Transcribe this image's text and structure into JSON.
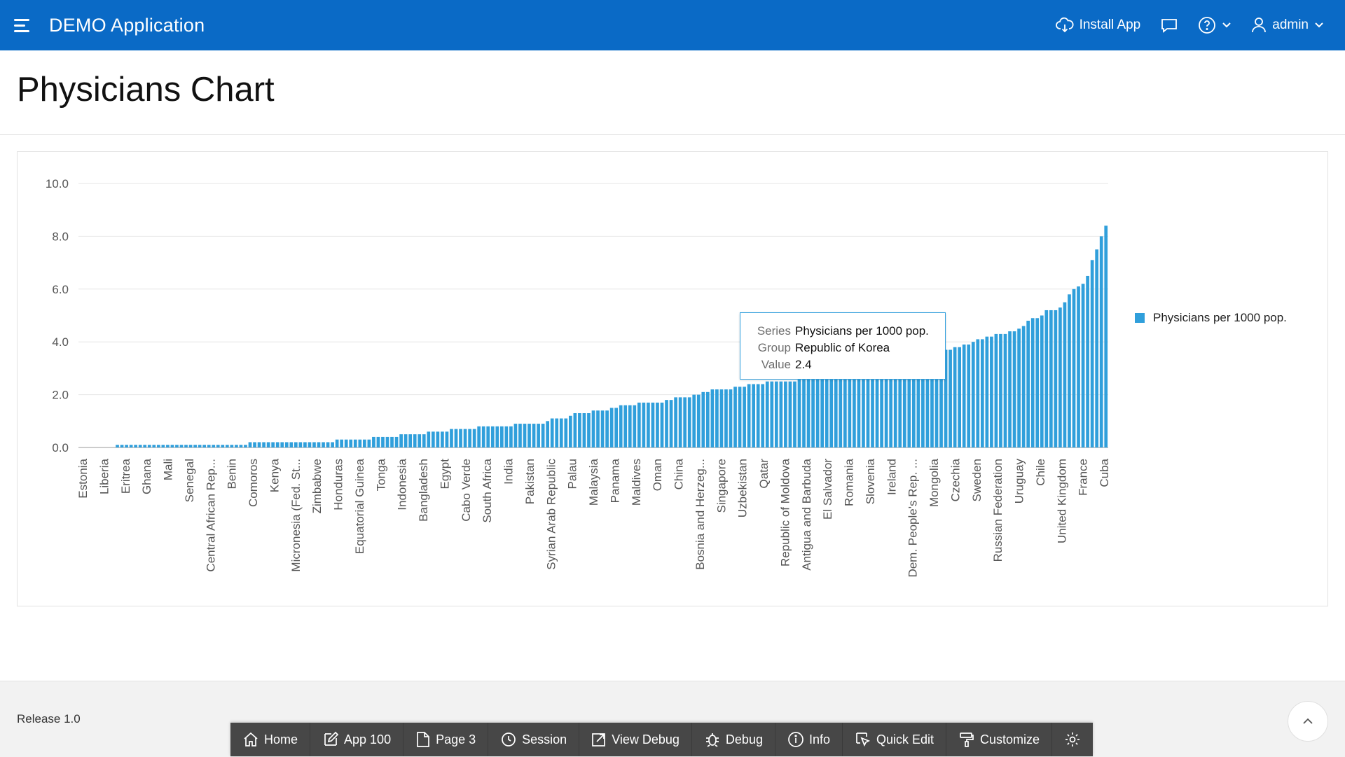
{
  "header": {
    "app_title": "DEMO Application",
    "install_label": "Install App",
    "user_label": "admin"
  },
  "page": {
    "title": "Physicians Chart"
  },
  "tooltip": {
    "series_key": "Series",
    "series_val": "Physicians per 1000 pop.",
    "group_key": "Group",
    "group_val": "Republic of Korea",
    "value_key": "Value",
    "value_val": "2.4"
  },
  "legend": {
    "label": "Physicians per 1000 pop."
  },
  "colors": {
    "bar": "#309fdb",
    "header": "#0a6ac6",
    "devbar": "#474747"
  },
  "chart_data": {
    "type": "bar",
    "ylim": [
      0,
      10
    ],
    "yticks": [
      "0.0",
      "2.0",
      "4.0",
      "6.0",
      "8.0",
      "10.0"
    ],
    "grid": true,
    "legend_position": "right",
    "series": [
      {
        "name": "Physicians per 1000 pop."
      }
    ],
    "labeled_categories": [
      "Estonia",
      "Liberia",
      "Eritrea",
      "Ghana",
      "Mali",
      "Senegal",
      "Central African Rep...",
      "Benin",
      "Comoros",
      "Kenya",
      "Micronesia (Fed. St...",
      "Zimbabwe",
      "Honduras",
      "Equatorial Guinea",
      "Tonga",
      "Indonesia",
      "Bangladesh",
      "Egypt",
      "Cabo Verde",
      "South Africa",
      "India",
      "Pakistan",
      "Syrian Arab Republic",
      "Palau",
      "Malaysia",
      "Panama",
      "Maldives",
      "Oman",
      "China",
      "Bosnia and Herzeg...",
      "Singapore",
      "Uzbekistan",
      "Qatar",
      "Republic of Moldova",
      "Antigua and Barbuda",
      "El Salvador",
      "Romania",
      "Slovenia",
      "Ireland",
      "Dem. People's Rep. ...",
      "Mongolia",
      "Czechia",
      "Sweden",
      "Russian Federation",
      "Uruguay",
      "Chile",
      "United Kingdom",
      "France",
      "Cuba"
    ],
    "values": [
      0.0,
      0.0,
      0.0,
      0.0,
      0.0,
      0.0,
      0.0,
      0.0,
      0.1,
      0.1,
      0.1,
      0.1,
      0.1,
      0.1,
      0.1,
      0.1,
      0.1,
      0.1,
      0.1,
      0.1,
      0.1,
      0.1,
      0.1,
      0.1,
      0.1,
      0.1,
      0.1,
      0.1,
      0.1,
      0.1,
      0.1,
      0.1,
      0.1,
      0.1,
      0.1,
      0.1,
      0.1,
      0.2,
      0.2,
      0.2,
      0.2,
      0.2,
      0.2,
      0.2,
      0.2,
      0.2,
      0.2,
      0.2,
      0.2,
      0.2,
      0.2,
      0.2,
      0.2,
      0.2,
      0.2,
      0.2,
      0.3,
      0.3,
      0.3,
      0.3,
      0.3,
      0.3,
      0.3,
      0.3,
      0.4,
      0.4,
      0.4,
      0.4,
      0.4,
      0.4,
      0.5,
      0.5,
      0.5,
      0.5,
      0.5,
      0.5,
      0.6,
      0.6,
      0.6,
      0.6,
      0.6,
      0.7,
      0.7,
      0.7,
      0.7,
      0.7,
      0.7,
      0.8,
      0.8,
      0.8,
      0.8,
      0.8,
      0.8,
      0.8,
      0.8,
      0.9,
      0.9,
      0.9,
      0.9,
      0.9,
      0.9,
      0.9,
      1.0,
      1.1,
      1.1,
      1.1,
      1.1,
      1.2,
      1.3,
      1.3,
      1.3,
      1.3,
      1.4,
      1.4,
      1.4,
      1.4,
      1.5,
      1.5,
      1.6,
      1.6,
      1.6,
      1.6,
      1.7,
      1.7,
      1.7,
      1.7,
      1.7,
      1.7,
      1.8,
      1.8,
      1.9,
      1.9,
      1.9,
      1.9,
      2.0,
      2.0,
      2.1,
      2.1,
      2.2,
      2.2,
      2.2,
      2.2,
      2.2,
      2.3,
      2.3,
      2.3,
      2.4,
      2.4,
      2.4,
      2.4,
      2.5,
      2.5,
      2.5,
      2.5,
      2.5,
      2.5,
      2.5,
      2.6,
      2.6,
      2.6,
      2.6,
      2.7,
      2.7,
      2.7,
      2.8,
      2.8,
      2.8,
      2.9,
      2.9,
      2.9,
      3.0,
      3.0,
      3.0,
      3.1,
      3.1,
      3.1,
      3.2,
      3.2,
      3.2,
      3.3,
      3.3,
      3.3,
      3.4,
      3.4,
      3.5,
      3.5,
      3.5,
      3.6,
      3.6,
      3.7,
      3.7,
      3.8,
      3.8,
      3.9,
      3.9,
      4.0,
      4.1,
      4.1,
      4.2,
      4.2,
      4.3,
      4.3,
      4.3,
      4.4,
      4.4,
      4.5,
      4.6,
      4.8,
      4.9,
      4.9,
      5.0,
      5.2,
      5.2,
      5.2,
      5.3,
      5.5,
      5.8,
      6.0,
      6.1,
      6.2,
      6.5,
      7.1,
      7.5,
      8.0,
      8.4
    ]
  },
  "footer": {
    "release": "Release 1.0"
  },
  "devbar": {
    "home": "Home",
    "app": "App 100",
    "page": "Page 3",
    "session": "Session",
    "view_debug": "View Debug",
    "debug": "Debug",
    "info": "Info",
    "quick_edit": "Quick Edit",
    "customize": "Customize"
  }
}
